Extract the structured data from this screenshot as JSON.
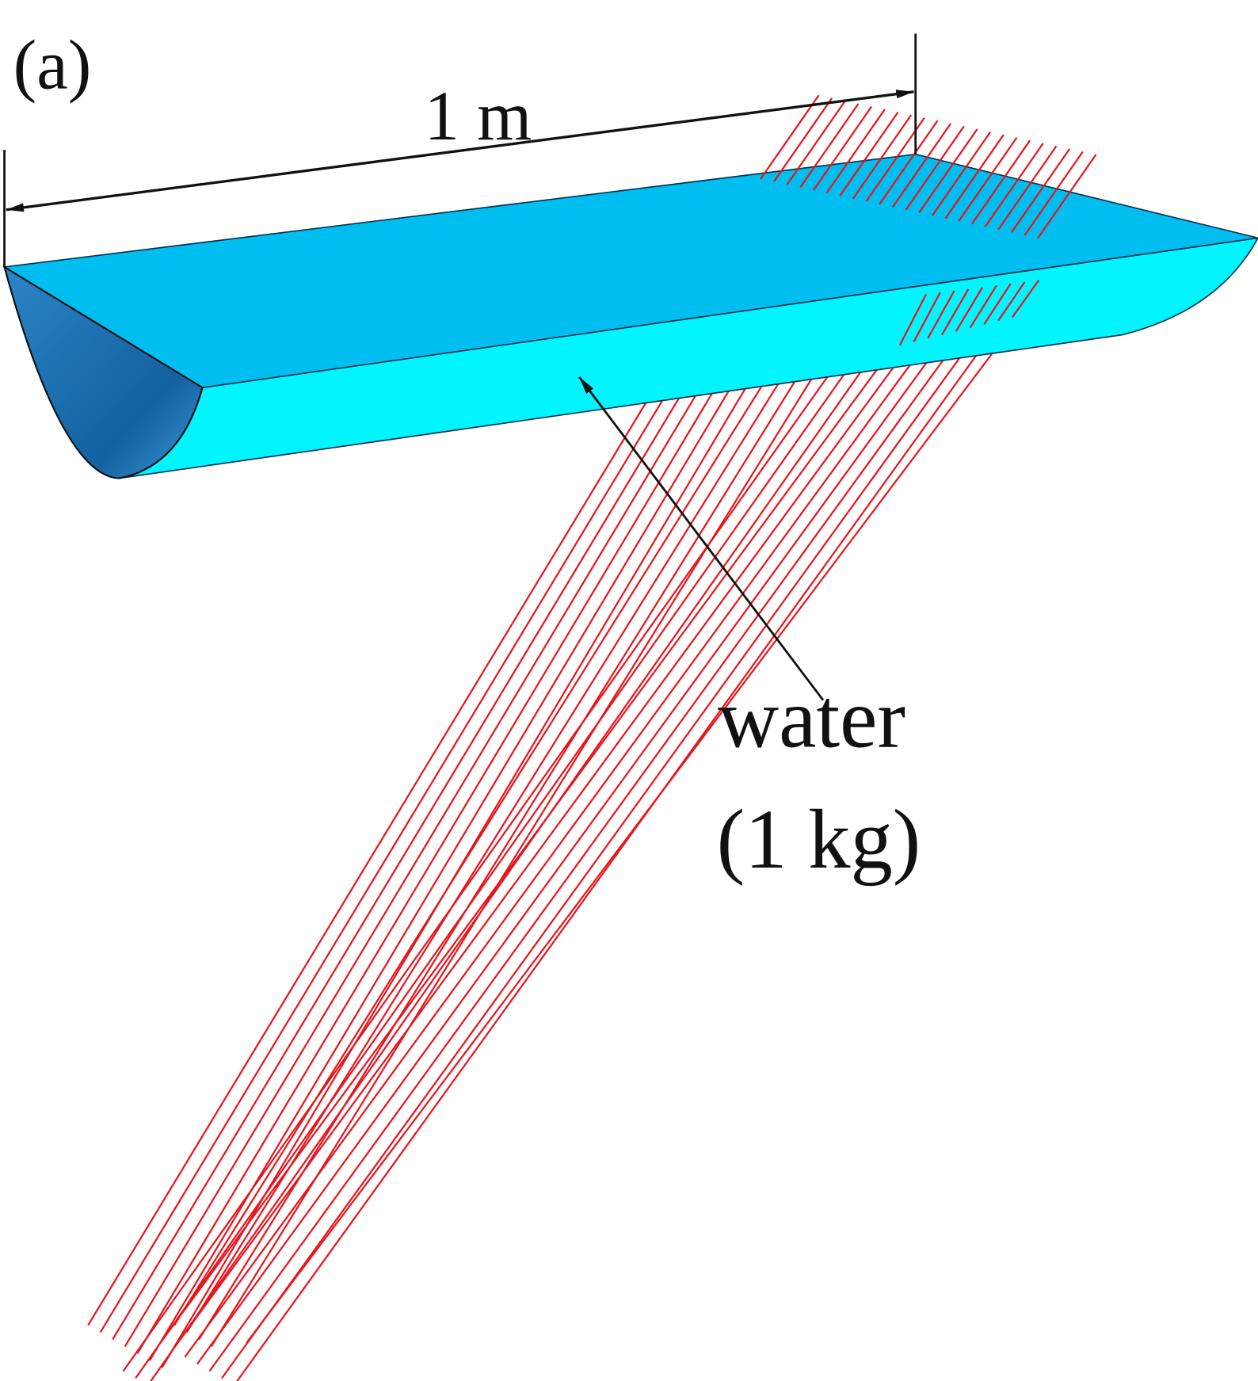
{
  "label": "(a)",
  "dimension": "1 m",
  "annotation": {
    "line1": "water",
    "line2": "(1 kg)"
  }
}
